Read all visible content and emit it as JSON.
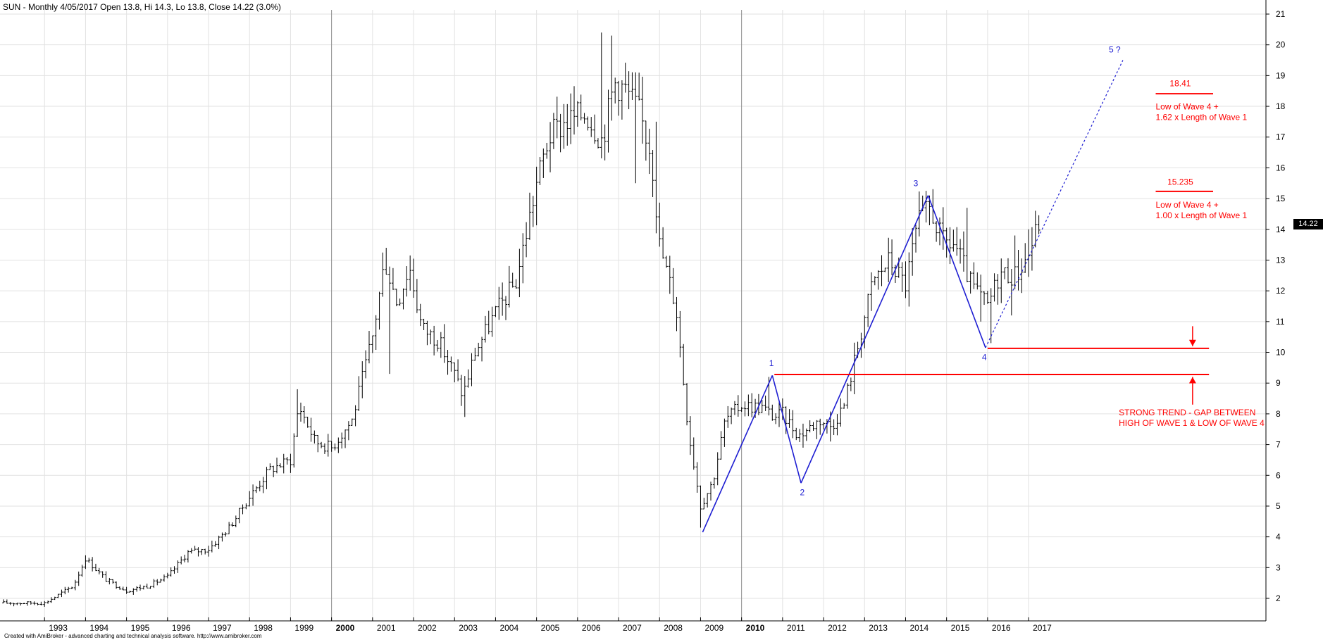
{
  "header": {
    "title": "SUN - Monthly 4/05/2017 Open 13.8, Hi 14.3, Lo 13.8, Close 14.22 (3.0%)"
  },
  "footer": {
    "credit": "Created with AmiBroker - advanced charting and technical analysis software. http://www.amibroker.com"
  },
  "last_price_label": "14.22",
  "chart_data": {
    "type": "ohlc-bar",
    "ylim": [
      1.5,
      21.3
    ],
    "y_ticks": [
      2,
      3,
      4,
      5,
      6,
      7,
      8,
      9,
      10,
      11,
      12,
      13,
      14,
      15,
      16,
      17,
      18,
      19,
      20,
      21
    ],
    "x_range": [
      1992.0,
      2017.6
    ],
    "x_tick_labels": [
      {
        "year": 1993,
        "label": "1993",
        "bold": false
      },
      {
        "year": 1994,
        "label": "1994",
        "bold": false
      },
      {
        "year": 1995,
        "label": "1995",
        "bold": false
      },
      {
        "year": 1996,
        "label": "1996",
        "bold": false
      },
      {
        "year": 1997,
        "label": "1997",
        "bold": false
      },
      {
        "year": 1998,
        "label": "1998",
        "bold": false
      },
      {
        "year": 1999,
        "label": "1999",
        "bold": false
      },
      {
        "year": 2000,
        "label": "2000",
        "bold": true
      },
      {
        "year": 2001,
        "label": "2001",
        "bold": false
      },
      {
        "year": 2002,
        "label": "2002",
        "bold": false
      },
      {
        "year": 2003,
        "label": "2003",
        "bold": false
      },
      {
        "year": 2004,
        "label": "2004",
        "bold": false
      },
      {
        "year": 2005,
        "label": "2005",
        "bold": false
      },
      {
        "year": 2006,
        "label": "2006",
        "bold": false
      },
      {
        "year": 2007,
        "label": "2007",
        "bold": false
      },
      {
        "year": 2008,
        "label": "2008",
        "bold": false
      },
      {
        "year": 2009,
        "label": "2009",
        "bold": false
      },
      {
        "year": 2010,
        "label": "2010",
        "bold": true
      },
      {
        "year": 2011,
        "label": "2011",
        "bold": false
      },
      {
        "year": 2012,
        "label": "2012",
        "bold": false
      },
      {
        "year": 2013,
        "label": "2013",
        "bold": false
      },
      {
        "year": 2014,
        "label": "2014",
        "bold": false
      },
      {
        "year": 2015,
        "label": "2015",
        "bold": false
      },
      {
        "year": 2016,
        "label": "2016",
        "bold": false
      },
      {
        "year": 2017,
        "label": "2017",
        "bold": false
      }
    ],
    "price_anchors": [
      [
        1992.0,
        1.85
      ],
      [
        1993.0,
        1.85
      ],
      [
        1993.7,
        2.4
      ],
      [
        1994.0,
        3.3
      ],
      [
        1994.5,
        2.6
      ],
      [
        1995.0,
        2.25
      ],
      [
        1995.5,
        2.4
      ],
      [
        1996.0,
        2.7
      ],
      [
        1996.5,
        3.5
      ],
      [
        1997.0,
        3.6
      ],
      [
        1997.5,
        4.3
      ],
      [
        1998.0,
        5.3
      ],
      [
        1998.5,
        6.2
      ],
      [
        1999.0,
        6.5
      ],
      [
        1999.2,
        8.3
      ],
      [
        1999.6,
        7.1
      ],
      [
        2000.0,
        6.9
      ],
      [
        2000.5,
        7.8
      ],
      [
        2001.0,
        10.5
      ],
      [
        2001.3,
        13.0
      ],
      [
        2001.6,
        11.6
      ],
      [
        2001.9,
        12.8
      ],
      [
        2002.2,
        10.8
      ],
      [
        2002.6,
        10.4
      ],
      [
        2003.0,
        9.3
      ],
      [
        2003.2,
        8.6
      ],
      [
        2003.5,
        10.0
      ],
      [
        2004.0,
        11.3
      ],
      [
        2004.5,
        12.3
      ],
      [
        2005.0,
        15.5
      ],
      [
        2005.3,
        17.0
      ],
      [
        2005.7,
        17.5
      ],
      [
        2006.2,
        17.8
      ],
      [
        2006.6,
        16.9
      ],
      [
        2006.9,
        18.8
      ],
      [
        2007.2,
        18.5
      ],
      [
        2007.5,
        17.8
      ],
      [
        2007.8,
        16.5
      ],
      [
        2008.0,
        13.5
      ],
      [
        2008.4,
        11.5
      ],
      [
        2008.7,
        7.5
      ],
      [
        2009.0,
        5.0
      ],
      [
        2009.3,
        5.8
      ],
      [
        2009.6,
        7.8
      ],
      [
        2010.0,
        8.3
      ],
      [
        2010.5,
        8.2
      ],
      [
        2010.8,
        7.9
      ],
      [
        2011.0,
        8.0
      ],
      [
        2011.4,
        7.3
      ],
      [
        2011.9,
        7.8
      ],
      [
        2012.2,
        7.6
      ],
      [
        2012.5,
        8.3
      ],
      [
        2012.8,
        10.0
      ],
      [
        2013.2,
        12.3
      ],
      [
        2013.6,
        13.0
      ],
      [
        2014.0,
        12.2
      ],
      [
        2014.3,
        14.2
      ],
      [
        2014.6,
        14.7
      ],
      [
        2014.9,
        13.6
      ],
      [
        2015.2,
        13.5
      ],
      [
        2015.6,
        12.2
      ],
      [
        2016.0,
        11.5
      ],
      [
        2016.3,
        12.6
      ],
      [
        2016.7,
        12.5
      ],
      [
        2017.0,
        13.2
      ],
      [
        2017.25,
        14.22
      ]
    ],
    "spikes": [
      {
        "x": 1994.0,
        "hi": 3.4
      },
      {
        "x": 1999.2,
        "hi": 8.8
      },
      {
        "x": 2001.3,
        "hi": 13.4
      },
      {
        "x": 2001.45,
        "lo": 9.3
      },
      {
        "x": 2003.25,
        "lo": 7.9
      },
      {
        "x": 2006.6,
        "hi": 20.4
      },
      {
        "x": 2006.8,
        "hi": 20.3
      },
      {
        "x": 2007.45,
        "lo": 15.5
      },
      {
        "x": 2007.9,
        "hi": 17.5
      },
      {
        "x": 2008.8,
        "lo": 6.3
      },
      {
        "x": 2009.0,
        "lo": 4.3
      },
      {
        "x": 2009.15,
        "lo": 5.3
      },
      {
        "x": 2010.7,
        "hi": 9.2
      },
      {
        "x": 2011.5,
        "lo": 6.9
      },
      {
        "x": 2012.15,
        "lo": 7.1
      },
      {
        "x": 2014.55,
        "hi": 15.1
      },
      {
        "x": 2014.7,
        "hi": 15.0
      },
      {
        "x": 2015.5,
        "hi": 14.7
      },
      {
        "x": 2015.8,
        "lo": 11.0
      },
      {
        "x": 2016.1,
        "lo": 10.3
      },
      {
        "x": 2016.6,
        "lo": 11.2
      },
      {
        "x": 2016.7,
        "hi": 13.8
      },
      {
        "x": 2017.0,
        "hi": 14.0
      }
    ],
    "wave_lines": [
      {
        "x1": 2009.05,
        "y1": 4.15,
        "x2": 2010.75,
        "y2": 9.25
      },
      {
        "x1": 2010.75,
        "y1": 9.25,
        "x2": 2011.45,
        "y2": 5.75
      },
      {
        "x1": 2011.45,
        "y1": 5.75,
        "x2": 2014.55,
        "y2": 15.1
      },
      {
        "x1": 2014.55,
        "y1": 15.1,
        "x2": 2015.95,
        "y2": 10.15
      }
    ],
    "projection_line": {
      "x1": 2015.95,
      "y1": 10.15,
      "x2": 2019.3,
      "y2": 19.5
    },
    "wave_labels": [
      {
        "text": "1",
        "x": 2010.73,
        "y": 9.55
      },
      {
        "text": "2",
        "x": 2011.48,
        "y": 5.35
      },
      {
        "text": "3",
        "x": 2014.25,
        "y": 15.4
      },
      {
        "text": "4",
        "x": 2015.92,
        "y": 9.75
      },
      {
        "text": "5 ?",
        "x": 2019.1,
        "y": 19.75
      }
    ],
    "horizontal_levels": [
      {
        "x1": 2010.8,
        "x2": 2021.4,
        "y": 9.28
      },
      {
        "x1": 2016.0,
        "x2": 2021.4,
        "y": 10.13
      },
      {
        "x1": 2020.1,
        "x2": 2021.5,
        "y": 18.41
      },
      {
        "x1": 2020.1,
        "x2": 2021.5,
        "y": 15.235
      }
    ],
    "arrows": [
      {
        "x": 2021.0,
        "from": 10.85,
        "to": 10.2
      },
      {
        "x": 2021.0,
        "from": 8.3,
        "to": 9.2
      }
    ],
    "annotations": [
      {
        "lines": [
          "18.41"
        ],
        "x": 2020.7,
        "y": 18.65,
        "anchor": "middle"
      },
      {
        "lines": [
          "Low of Wave 4 +",
          "1.62 x Length of Wave 1"
        ],
        "x": 2020.1,
        "y": 17.9,
        "anchor": "start"
      },
      {
        "lines": [
          "15.235"
        ],
        "x": 2020.7,
        "y": 15.45,
        "anchor": "middle"
      },
      {
        "lines": [
          "Low of Wave 4 +",
          "1.00 x Length of Wave 1"
        ],
        "x": 2020.1,
        "y": 14.7,
        "anchor": "start"
      },
      {
        "lines": [
          "STRONG TREND - GAP BETWEEN",
          "HIGH OF WAVE 1 & LOW OF WAVE 4"
        ],
        "x": 2019.2,
        "y": 7.95,
        "anchor": "start"
      }
    ],
    "colors": {
      "bars": "#000000",
      "waves": "#1e1ed2",
      "levels": "#ff0000",
      "grid": "#e2e2e2",
      "year_divider": "#8c8c8c"
    }
  }
}
